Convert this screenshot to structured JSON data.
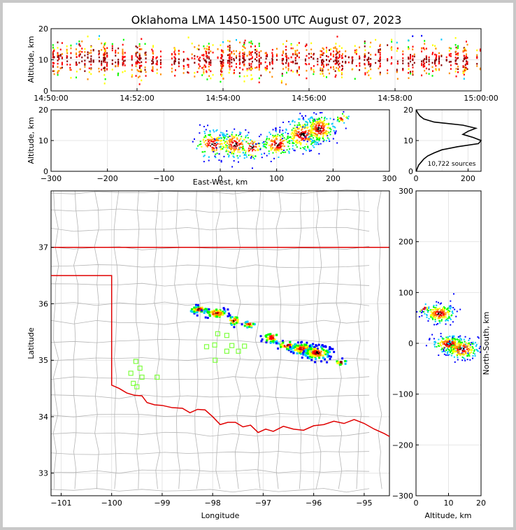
{
  "chart_data": {
    "type": "scatter",
    "title": "Oklahoma LMA 1450-1500 UTC August 07, 2023",
    "source_count": "10,722 sources",
    "colors": {
      "density": [
        "#0000ff",
        "#00c8ff",
        "#00ff00",
        "#ffff00",
        "#ff8c00",
        "#ff0000",
        "#8b0000",
        "#000000",
        "#ffffff"
      ],
      "state_border": "#e00000",
      "county_lines": "#b4b4b4",
      "stations": "#7fff40",
      "grid": "#e6e6e6"
    },
    "panels": [
      {
        "id": "time-altitude",
        "ylabel": "Altitude, km",
        "xlabel": "",
        "ylim": [
          0,
          20
        ],
        "xlim": [
          "14:50:00",
          "15:00:00"
        ],
        "x_ticks": [
          "14:50:00",
          "14:52:00",
          "14:54:00",
          "14:56:00",
          "14:58:00",
          "15:00:00"
        ],
        "y_ticks": [
          "0",
          "10",
          "20"
        ],
        "y_tick_values": [
          0,
          10,
          20
        ],
        "band": {
          "altitude_range_km": [
            2,
            18
          ],
          "core_km": [
            7,
            14
          ]
        }
      },
      {
        "id": "ew-altitude",
        "xlabel": "East-West, km",
        "ylabel": "Altitude, km",
        "xlim": [
          -300,
          300
        ],
        "ylim": [
          0,
          20
        ],
        "x_ticks": [
          "−300",
          "−200",
          "−100",
          "0",
          "100",
          "200",
          "300"
        ],
        "x_tick_values": [
          -300,
          -200,
          -100,
          0,
          100,
          200,
          300
        ],
        "y_ticks": [
          "0",
          "10",
          "20"
        ],
        "y_tick_values": [
          0,
          10,
          20
        ],
        "clusters": [
          {
            "ew_km": -15,
            "alt_km": 9,
            "sx": 15,
            "sz": 2.2,
            "n": 140
          },
          {
            "ew_km": 25,
            "alt_km": 9,
            "sx": 15,
            "sz": 2.2,
            "n": 160
          },
          {
            "ew_km": 55,
            "alt_km": 8,
            "sx": 10,
            "sz": 2,
            "n": 60
          },
          {
            "ew_km": 100,
            "alt_km": 9,
            "sx": 14,
            "sz": 2,
            "n": 150
          },
          {
            "ew_km": 145,
            "alt_km": 12,
            "sx": 16,
            "sz": 2.5,
            "n": 260
          },
          {
            "ew_km": 175,
            "alt_km": 14,
            "sx": 13,
            "sz": 2.2,
            "n": 220
          },
          {
            "ew_km": 215,
            "alt_km": 17.5,
            "sx": 6,
            "sz": 0.8,
            "n": 25
          }
        ]
      },
      {
        "id": "altitude-histogram",
        "xlim": [
          0,
          250
        ],
        "ylim": [
          0,
          20
        ],
        "x_ticks": [
          "0",
          "200"
        ],
        "x_tick_values": [
          0,
          200
        ],
        "y_ticks": [
          "0",
          "10",
          "20"
        ],
        "y_tick_values": [
          0,
          10,
          20
        ],
        "profile": [
          [
            0,
            1
          ],
          [
            1,
            5
          ],
          [
            2,
            10
          ],
          [
            3,
            20
          ],
          [
            4,
            30
          ],
          [
            5,
            45
          ],
          [
            6,
            70
          ],
          [
            7,
            100
          ],
          [
            8,
            160
          ],
          [
            9,
            240
          ],
          [
            10,
            250
          ],
          [
            11,
            220
          ],
          [
            12,
            180
          ],
          [
            13,
            200
          ],
          [
            14,
            230
          ],
          [
            15,
            180
          ],
          [
            16,
            70
          ],
          [
            17,
            30
          ],
          [
            18,
            15
          ],
          [
            19,
            6
          ],
          [
            20,
            1
          ]
        ]
      },
      {
        "id": "plan-view",
        "xlabel": "Longitude",
        "ylabel": "Latitude",
        "xlim": [
          -101.2,
          -94.5
        ],
        "ylim": [
          32.6,
          38.0
        ],
        "x_ticks": [
          "−101",
          "−100",
          "−99",
          "−98",
          "−97",
          "−96",
          "−95"
        ],
        "x_tick_values": [
          -101,
          -100,
          -99,
          -98,
          -97,
          -96,
          -95
        ],
        "y_ticks": [
          "33",
          "34",
          "35",
          "36",
          "37"
        ],
        "y_tick_values": [
          33,
          34,
          35,
          36,
          37
        ],
        "clusters": [
          {
            "lon": -98.3,
            "lat": 35.92,
            "slon": 0.1,
            "slat": 0.03,
            "n": 50
          },
          {
            "lon": -97.95,
            "lat": 35.85,
            "slon": 0.12,
            "slat": 0.04,
            "n": 60
          },
          {
            "lon": -97.6,
            "lat": 35.72,
            "slon": 0.07,
            "slat": 0.04,
            "n": 25
          },
          {
            "lon": -97.3,
            "lat": 35.65,
            "slon": 0.06,
            "slat": 0.03,
            "n": 20
          },
          {
            "lon": -96.85,
            "lat": 35.42,
            "slon": 0.08,
            "slat": 0.05,
            "n": 40
          },
          {
            "lon": -96.55,
            "lat": 35.28,
            "slon": 0.1,
            "slat": 0.04,
            "n": 40
          },
          {
            "lon": -96.25,
            "lat": 35.22,
            "slon": 0.12,
            "slat": 0.05,
            "n": 120
          },
          {
            "lon": -95.95,
            "lat": 35.15,
            "slon": 0.13,
            "slat": 0.06,
            "n": 140
          },
          {
            "lon": -95.48,
            "lat": 34.98,
            "slon": 0.06,
            "slat": 0.03,
            "n": 15
          }
        ],
        "stations": [
          [
            -97.9,
            35.47
          ],
          [
            -97.72,
            35.44
          ],
          [
            -98.12,
            35.24
          ],
          [
            -97.96,
            35.27
          ],
          [
            -97.62,
            35.26
          ],
          [
            -97.72,
            35.16
          ],
          [
            -97.49,
            35.16
          ],
          [
            -97.37,
            35.25
          ],
          [
            -97.95,
            35.0
          ],
          [
            -99.52,
            34.98
          ],
          [
            -99.44,
            34.86
          ],
          [
            -99.62,
            34.77
          ],
          [
            -99.4,
            34.7
          ],
          [
            -99.1,
            34.7
          ],
          [
            -99.57,
            34.59
          ],
          [
            -99.5,
            34.53
          ]
        ]
      },
      {
        "id": "altitude-ns",
        "xlabel": "Altitude, km",
        "ylabel": "North-South, km",
        "xlim": [
          0,
          20
        ],
        "ylim": [
          -300,
          300
        ],
        "x_ticks": [
          "0",
          "10",
          "20"
        ],
        "x_tick_values": [
          0,
          10,
          20
        ],
        "y_ticks": [
          "−300",
          "−200",
          "−100",
          "0",
          "100",
          "200",
          "300"
        ],
        "y_tick_values": [
          -300,
          -200,
          -100,
          0,
          100,
          200,
          300
        ],
        "clusters": [
          {
            "alt_km": 7,
            "ns_km": 60,
            "salt": 2.3,
            "sns": 9,
            "n": 200
          },
          {
            "alt_km": 10,
            "ns_km": 0,
            "salt": 2.5,
            "sns": 8,
            "n": 200
          },
          {
            "alt_km": 14,
            "ns_km": -10,
            "salt": 2.5,
            "sns": 10,
            "n": 180
          },
          {
            "alt_km": 2,
            "ns_km": 70,
            "salt": 1,
            "sns": 5,
            "n": 15
          }
        ]
      }
    ]
  }
}
